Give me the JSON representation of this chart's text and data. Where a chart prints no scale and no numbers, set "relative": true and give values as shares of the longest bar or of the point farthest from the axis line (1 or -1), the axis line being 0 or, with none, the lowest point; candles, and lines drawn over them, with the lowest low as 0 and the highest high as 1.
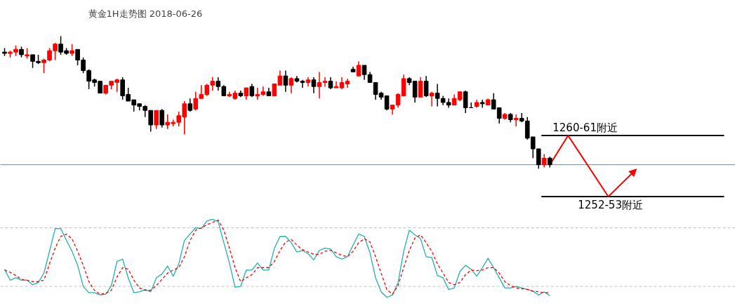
{
  "chart_data": [
    {
      "type": "candlestick",
      "title": "黄金1H走势图 2018-06-26",
      "relative": true,
      "categories": [
        null,
        null,
        null,
        null,
        null,
        null,
        null,
        null,
        null,
        null,
        null,
        null,
        null,
        null,
        null,
        null,
        null,
        null,
        null,
        null,
        null,
        null,
        null,
        null,
        null,
        null,
        null,
        null,
        null,
        null,
        null,
        null,
        null,
        null,
        null,
        null,
        null,
        null,
        null,
        null,
        null,
        null,
        null,
        null,
        null,
        null,
        null,
        null,
        null,
        null,
        null,
        null,
        null,
        null,
        null,
        null,
        null,
        null,
        null,
        null,
        null,
        null,
        null,
        null,
        null,
        null,
        null,
        null,
        null,
        null,
        null,
        null,
        null,
        null,
        null,
        null,
        null,
        null,
        null,
        null,
        null,
        null,
        null,
        null,
        null,
        null,
        null,
        null,
        null,
        null,
        null,
        null,
        null,
        null,
        null,
        null,
        null,
        null
      ],
      "ohlc": [
        [
          0.88,
          0.91,
          0.85,
          0.87
        ],
        [
          0.87,
          0.89,
          0.84,
          0.88
        ],
        [
          0.88,
          0.93,
          0.85,
          0.9
        ],
        [
          0.9,
          0.92,
          0.84,
          0.86
        ],
        [
          0.85,
          0.91,
          0.83,
          0.86
        ],
        [
          0.86,
          0.86,
          0.76,
          0.81
        ],
        [
          0.81,
          0.86,
          0.79,
          0.8
        ],
        [
          0.8,
          0.83,
          0.72,
          0.82
        ],
        [
          0.82,
          0.91,
          0.81,
          0.89
        ],
        [
          0.89,
          0.95,
          0.82,
          0.94
        ],
        [
          0.94,
          1.0,
          0.86,
          0.88
        ],
        [
          0.89,
          0.91,
          0.86,
          0.87
        ],
        [
          0.87,
          0.94,
          0.85,
          0.89
        ],
        [
          0.9,
          0.9,
          0.78,
          0.82
        ],
        [
          0.82,
          0.84,
          0.72,
          0.74
        ],
        [
          0.74,
          0.75,
          0.6,
          0.66
        ],
        [
          0.67,
          0.68,
          0.62,
          0.65
        ],
        [
          0.66,
          0.66,
          0.57,
          0.57
        ],
        [
          0.57,
          0.63,
          0.56,
          0.63
        ],
        [
          0.63,
          0.66,
          0.6,
          0.66
        ],
        [
          0.65,
          0.68,
          0.58,
          0.67
        ],
        [
          0.67,
          0.69,
          0.52,
          0.55
        ],
        [
          0.56,
          0.61,
          0.51,
          0.51
        ],
        [
          0.52,
          0.52,
          0.43,
          0.48
        ],
        [
          0.49,
          0.49,
          0.44,
          0.47
        ],
        [
          0.47,
          0.48,
          0.39,
          0.44
        ],
        [
          0.44,
          0.44,
          0.28,
          0.33
        ],
        [
          0.33,
          0.44,
          0.3,
          0.44
        ],
        [
          0.44,
          0.45,
          0.31,
          0.33
        ],
        [
          0.33,
          0.41,
          0.3,
          0.35
        ],
        [
          0.34,
          0.37,
          0.32,
          0.35
        ],
        [
          0.35,
          0.43,
          0.32,
          0.4
        ],
        [
          0.39,
          0.51,
          0.26,
          0.49
        ],
        [
          0.49,
          0.53,
          0.43,
          0.44
        ],
        [
          0.45,
          0.58,
          0.44,
          0.53
        ],
        [
          0.53,
          0.63,
          0.53,
          0.56
        ],
        [
          0.56,
          0.64,
          0.55,
          0.63
        ],
        [
          0.63,
          0.69,
          0.59,
          0.66
        ],
        [
          0.66,
          0.69,
          0.59,
          0.62
        ],
        [
          0.62,
          0.63,
          0.55,
          0.55
        ],
        [
          0.55,
          0.58,
          0.54,
          0.56
        ],
        [
          0.53,
          0.59,
          0.52,
          0.57
        ],
        [
          0.57,
          0.59,
          0.54,
          0.55
        ],
        [
          0.55,
          0.61,
          0.52,
          0.61
        ],
        [
          0.62,
          0.64,
          0.54,
          0.55
        ],
        [
          0.55,
          0.61,
          0.52,
          0.56
        ],
        [
          0.56,
          0.62,
          0.55,
          0.58
        ],
        [
          0.58,
          0.61,
          0.55,
          0.55
        ],
        [
          0.55,
          0.64,
          0.55,
          0.64
        ],
        [
          0.63,
          0.74,
          0.63,
          0.7
        ],
        [
          0.7,
          0.74,
          0.58,
          0.63
        ],
        [
          0.63,
          0.69,
          0.57,
          0.68
        ],
        [
          0.68,
          0.7,
          0.65,
          0.66
        ],
        [
          0.66,
          0.67,
          0.61,
          0.65
        ],
        [
          0.65,
          0.69,
          0.62,
          0.67
        ],
        [
          0.67,
          0.69,
          0.57,
          0.62
        ],
        [
          0.62,
          0.73,
          0.53,
          0.65
        ],
        [
          0.65,
          0.69,
          0.62,
          0.66
        ],
        [
          0.66,
          0.69,
          0.6,
          0.61
        ],
        [
          0.61,
          0.66,
          0.61,
          0.62
        ],
        [
          0.61,
          0.69,
          0.6,
          0.65
        ],
        [
          0.64,
          0.68,
          0.61,
          0.66
        ],
        [
          0.75,
          0.77,
          0.73,
          0.73
        ],
        [
          0.7,
          0.81,
          0.7,
          0.78
        ],
        [
          0.78,
          0.78,
          0.67,
          0.71
        ],
        [
          0.71,
          0.73,
          0.65,
          0.65
        ],
        [
          0.65,
          0.65,
          0.52,
          0.56
        ],
        [
          0.57,
          0.58,
          0.52,
          0.54
        ],
        [
          0.55,
          0.55,
          0.44,
          0.45
        ],
        [
          0.45,
          0.48,
          0.41,
          0.48
        ],
        [
          0.48,
          0.57,
          0.46,
          0.56
        ],
        [
          0.55,
          0.71,
          0.55,
          0.68
        ],
        [
          0.68,
          0.69,
          0.63,
          0.65
        ],
        [
          0.66,
          0.66,
          0.5,
          0.54
        ],
        [
          0.54,
          0.69,
          0.54,
          0.66
        ],
        [
          0.66,
          0.7,
          0.54,
          0.55
        ],
        [
          0.55,
          0.58,
          0.47,
          0.57
        ],
        [
          0.57,
          0.64,
          0.47,
          0.53
        ],
        [
          0.53,
          0.55,
          0.48,
          0.5
        ],
        [
          0.5,
          0.53,
          0.46,
          0.48
        ],
        [
          0.48,
          0.56,
          0.48,
          0.53
        ],
        [
          0.52,
          0.58,
          0.51,
          0.58
        ],
        [
          0.58,
          0.59,
          0.42,
          0.46
        ],
        [
          0.46,
          0.5,
          0.46,
          0.46
        ],
        [
          0.47,
          0.52,
          0.46,
          0.5
        ],
        [
          0.5,
          0.52,
          0.46,
          0.49
        ],
        [
          0.48,
          0.53,
          0.48,
          0.52
        ],
        [
          0.52,
          0.57,
          0.45,
          0.45
        ],
        [
          0.46,
          0.46,
          0.34,
          0.38
        ],
        [
          0.38,
          0.42,
          0.37,
          0.41
        ],
        [
          0.41,
          0.42,
          0.35,
          0.37
        ],
        [
          0.37,
          0.41,
          0.32,
          0.38
        ],
        [
          0.38,
          0.42,
          0.35,
          0.36
        ],
        [
          0.36,
          0.39,
          0.22,
          0.23
        ],
        [
          0.24,
          0.24,
          0.08,
          0.15
        ],
        [
          0.15,
          0.15,
          0,
          0.03
        ],
        [
          0.03,
          0.11,
          0.01,
          0.08
        ],
        [
          0.08,
          0.09,
          0.01,
          0.03
        ]
      ],
      "colors": [
        "#000000",
        "#ff0000",
        "#ff0000",
        "#000000",
        "#ff0000",
        "#000000",
        "#000000",
        "#ff0000",
        "#ff0000",
        "#ff0000",
        "#000000",
        "#000000",
        "#ff0000",
        "#000000",
        "#000000",
        "#000000",
        "#000000",
        "#000000",
        "#ff0000",
        "#ff0000",
        "#ff0000",
        "#000000",
        "#000000",
        "#000000",
        "#000000",
        "#000000",
        "#000000",
        "#ff0000",
        "#000000",
        "#ff0000",
        "#ff0000",
        "#ff0000",
        "#ff0000",
        "#000000",
        "#ff0000",
        "#ff0000",
        "#ff0000",
        "#ff0000",
        "#000000",
        "#000000",
        "#ff0000",
        "#ff0000",
        "#000000",
        "#ff0000",
        "#000000",
        "#ff0000",
        "#ff0000",
        "#000000",
        "#ff0000",
        "#ff0000",
        "#000000",
        "#ff0000",
        "#000000",
        "#000000",
        "#ff0000",
        "#000000",
        "#ff0000",
        "#ff0000",
        "#000000",
        "#ff0000",
        "#ff0000",
        "#ff0000",
        "#000000",
        "#ff0000",
        "#000000",
        "#000000",
        "#000000",
        "#000000",
        "#000000",
        "#ff0000",
        "#ff0000",
        "#ff0000",
        "#000000",
        "#000000",
        "#ff0000",
        "#000000",
        "#ff0000",
        "#000000",
        "#000000",
        "#000000",
        "#ff0000",
        "#ff0000",
        "#000000",
        "#000000",
        "#ff0000",
        "#000000",
        "#ff0000",
        "#000000",
        "#000000",
        "#ff0000",
        "#000000",
        "#ff0000",
        "#000000",
        "#000000",
        "#000000",
        "#000000",
        "#ff0000",
        "#000000"
      ],
      "ref_lines": [
        {
          "axis": "y",
          "value": 0.25,
          "label": "1260-61附近",
          "color": "#000000"
        },
        {
          "axis": "y",
          "value": -0.21,
          "label": "1252-53附近",
          "color": "#000000"
        },
        {
          "axis": "y",
          "value": 0.03,
          "color": "#778899"
        }
      ]
    },
    {
      "type": "line",
      "relative": true,
      "categories": [
        null,
        null,
        null,
        null,
        null,
        null,
        null,
        null,
        null,
        null,
        null,
        null,
        null,
        null,
        null,
        null,
        null,
        null,
        null,
        null,
        null,
        null,
        null,
        null,
        null,
        null,
        null,
        null,
        null,
        null,
        null,
        null,
        null,
        null,
        null,
        null,
        null,
        null,
        null,
        null,
        null,
        null,
        null,
        null,
        null,
        null,
        null,
        null,
        null,
        null,
        null,
        null,
        null,
        null,
        null,
        null,
        null,
        null,
        null,
        null,
        null,
        null,
        null,
        null,
        null,
        null,
        null,
        null,
        null,
        null,
        null,
        null,
        null,
        null,
        null,
        null,
        null,
        null,
        null,
        null,
        null,
        null,
        null,
        null,
        null,
        null,
        null,
        null,
        null,
        null,
        null,
        null,
        null,
        null,
        null,
        null,
        null,
        null
      ],
      "series": [
        {
          "color": "#20b2aa",
          "line_style": "solid",
          "values": [
            0.36,
            0.22,
            0.25,
            0.22,
            0.22,
            0.16,
            0.19,
            0.31,
            0.59,
            0.88,
            0.88,
            0.73,
            0.59,
            0.41,
            0.14,
            0.06,
            0.06,
            0.03,
            0.04,
            0.15,
            0.46,
            0.49,
            0.25,
            0.06,
            0.07,
            0.1,
            0.07,
            0.25,
            0.3,
            0.4,
            0.27,
            0.43,
            0.73,
            0.81,
            0.89,
            0.88,
            0.98,
            1.0,
            0.97,
            0.7,
            0.44,
            0.13,
            0.14,
            0.35,
            0.35,
            0.44,
            0.35,
            0.35,
            0.63,
            0.78,
            0.78,
            0.7,
            0.58,
            0.6,
            0.56,
            0.48,
            0.6,
            0.63,
            0.62,
            0.52,
            0.49,
            0.52,
            0.67,
            0.81,
            0.78,
            0.57,
            0.25,
            0.07,
            0,
            0.03,
            0.19,
            0.59,
            0.86,
            0.8,
            0.75,
            0.52,
            0.51,
            0.28,
            0.25,
            0.1,
            0.12,
            0.33,
            0.41,
            0.36,
            0.27,
            0.38,
            0.5,
            0.38,
            0.25,
            0.12,
            0.12,
            0.14,
            0.12,
            0.1,
            0.08,
            0.03,
            0.07,
            0.02
          ]
        },
        {
          "color": "#ff0000",
          "line_style": "dashed",
          "values": [
            0.35,
            0.32,
            0.28,
            0.23,
            0.22,
            0.2,
            0.2,
            0.22,
            0.43,
            0.63,
            0.78,
            0.81,
            0.75,
            0.59,
            0.41,
            0.2,
            0.09,
            0.04,
            0.05,
            0.09,
            0.26,
            0.38,
            0.36,
            0.22,
            0.12,
            0.09,
            0.09,
            0.15,
            0.23,
            0.31,
            0.35,
            0.38,
            0.52,
            0.73,
            0.86,
            0.89,
            0.93,
            0.96,
            0.99,
            0.86,
            0.63,
            0.38,
            0.2,
            0.25,
            0.29,
            0.38,
            0.38,
            0.38,
            0.46,
            0.6,
            0.71,
            0.74,
            0.67,
            0.61,
            0.58,
            0.55,
            0.55,
            0.59,
            0.6,
            0.57,
            0.54,
            0.52,
            0.59,
            0.7,
            0.75,
            0.71,
            0.52,
            0.31,
            0.1,
            0.04,
            0.15,
            0.38,
            0.6,
            0.76,
            0.8,
            0.7,
            0.59,
            0.43,
            0.31,
            0.19,
            0.16,
            0.19,
            0.29,
            0.35,
            0.34,
            0.35,
            0.38,
            0.38,
            0.31,
            0.2,
            0.15,
            0.12,
            0.11,
            0.1,
            0.08,
            0.07,
            0.06,
            0.06
          ]
        }
      ],
      "ref_lines": [
        {
          "axis": "y",
          "value": 0.89,
          "color": "#c0c0c0",
          "line_style": "dashed"
        },
        {
          "axis": "y",
          "value": 0.14,
          "color": "#c0c0c0",
          "line_style": "dashed"
        }
      ]
    }
  ]
}
